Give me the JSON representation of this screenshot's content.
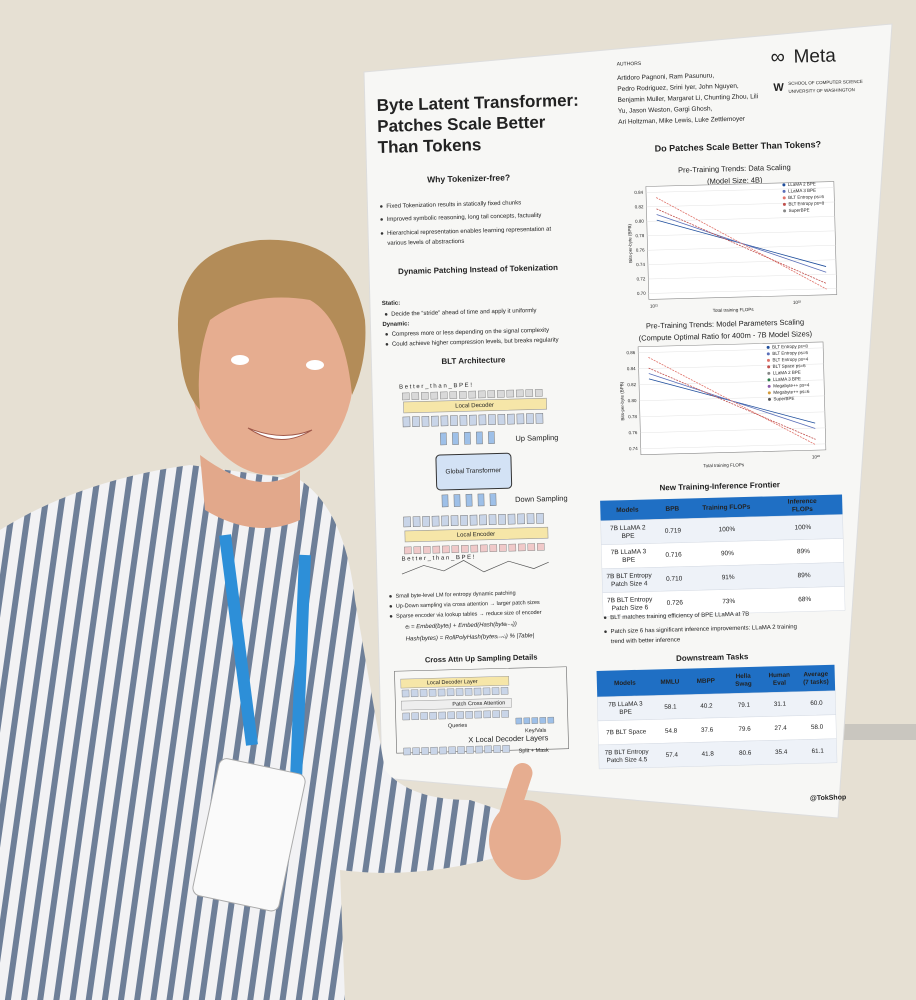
{
  "poster": {
    "title": [
      "Byte Latent Transformer:",
      "Patches Scale Better",
      "Than Tokens"
    ],
    "authors_label": "AUTHORS",
    "authors": [
      "Artidoro Pagnoni, Ram Pasunuru,",
      "Pedro Rodriguez, Srini Iyer, John Nguyen,",
      "Benjamin Muller, Margaret Li, Chunting Zhou, Lili",
      "Yu, Jason Weston, Gargi Ghosh,",
      "Ari Holtzman, Mike Lewis, Luke Zettlemoyer"
    ],
    "logo": "Meta",
    "affiliation": [
      "SCHOOL OF COMPUTER SCIENCE",
      "UNIVERSITY OF WASHINGTON"
    ],
    "why": {
      "heading": "Why Tokenizer-free?",
      "bullets": [
        "Fixed Tokenization results in statically fixed chunks",
        "Improved symbolic reasoning, long tail concepts, factuality",
        "Hierarchical representation enables learning  representation at",
        "various levels of abstractions"
      ]
    },
    "patching": {
      "heading": "Dynamic Patching Instead of Tokenization",
      "static_label": "Static:",
      "static": [
        "Decide the “stride” ahead of time and apply it uniformly"
      ],
      "dynamic_label": "Dynamic:",
      "dynamic": [
        "Compress more or less depending on the signal complexity",
        "Could achieve higher compression levels, but breaks regularity"
      ]
    },
    "architecture": {
      "heading": "BLT Architecture",
      "tokens": "B e t t e r _ t h a n _ B P E !",
      "local_decoder": "Local Decoder",
      "up_sampling": "Up Sampling",
      "global": "Global Transformer",
      "down_sampling": "Down Sampling",
      "local_encoder": "Local Encoder",
      "bullets": [
        "Small byte-level LM for entropy dynamic patching",
        "Up-Down sampling via cross attention → larger patch sizes",
        "Sparse encoder via lookup tables → reduce size of encoder"
      ],
      "formulas": [
        "eᵢ = Embed(byteᵢ) + Embed(Hash(byteᵢ₋ₙ))",
        "Hash(bytes) = RollPolyHash(bytesᵢ₋ₙ:ᵢ) % |Table|"
      ]
    },
    "cross_attn": {
      "heading": "Cross Attn Up Sampling Details",
      "decoder_layer": "Local Decoder Layer",
      "patch_cross": "Patch Cross Attention",
      "queries": "Queries",
      "keyvals": "Key/Vals",
      "layers": "X Local Decoder Layers",
      "split": "Split + Mask"
    },
    "question": "Do Patches Scale Better Than Tokens?",
    "chart1": {
      "title": [
        "Pre-Training Trends: Data Scaling",
        "(Model Size: 4B)"
      ],
      "yticks": [
        "0.84",
        "0.82",
        "0.80",
        "0.78",
        "0.76",
        "0.74",
        "0.72",
        "0.70"
      ],
      "xticks": [
        "10²¹",
        "10²²"
      ],
      "xlabel": "Total training FLOPs",
      "ylabel": "Bits-per-byte (BPB)",
      "legend": [
        "LLaMA 2 BPE",
        "LLaMA 3 BPE",
        "BLT Entropy ps=6",
        "BLT Entropy ps=8",
        "SuperBPE"
      ]
    },
    "chart2": {
      "title": [
        "Pre-Training Trends: Model Parameters Scaling",
        "(Compute Optimal Ratio for 400m - 7B Model Sizes)"
      ],
      "yticks": [
        "0.86",
        "0.84",
        "0.82",
        "0.80",
        "0.78",
        "0.76",
        "0.74"
      ],
      "xticks": [
        "10²²"
      ],
      "xlabel": "Total training FLOPs",
      "ylabel": "Bits-per-byte (BPB)",
      "legend": [
        "BLT Entropy ps=8",
        "BLT Entropy ps=6",
        "BLT Entropy ps=4",
        "BLT Space ps=6",
        "LLaMA 2 BPE",
        "LLaMA 3 BPE",
        "Megabyte++ ps=4",
        "Megabyte++ ps=6",
        "SuperBPE"
      ]
    },
    "frontier": {
      "heading": "New Training-Inference Frontier",
      "header": [
        [
          "Models"
        ],
        [
          "BPB"
        ],
        [
          "Training FLOPs"
        ],
        [
          "Inference",
          "FLOPs"
        ]
      ],
      "rows": [
        [
          [
            "7B LLaMA 2",
            "BPE"
          ],
          "0.719",
          "100%",
          "100%"
        ],
        [
          [
            "7B LLaMA 3",
            "BPE"
          ],
          "0.716",
          "90%",
          "89%"
        ],
        [
          [
            "7B BLT Entropy",
            "Patch Size 4"
          ],
          "0.710",
          "91%",
          "89%"
        ],
        [
          [
            "7B BLT Entropy",
            "Patch Size 6"
          ],
          "0.726",
          "73%",
          "68%"
        ]
      ],
      "bullets": [
        "BLT matches training efficiency of BPE LLaMA at 7B",
        "Patch size 6 has significant inference improvements: LLaMA 2 training",
        "trend with better inference"
      ]
    },
    "downstream": {
      "heading": "Downstream Tasks",
      "header": [
        [
          "Models"
        ],
        [
          "MMLU"
        ],
        [
          "MBPP"
        ],
        [
          "Hella",
          "Swag"
        ],
        [
          "Human",
          "Eval"
        ],
        [
          "Average",
          "(7 tasks)"
        ]
      ],
      "rows": [
        [
          [
            "7B LLaMA 3",
            "BPE"
          ],
          "58.1",
          "40.2",
          "79.1",
          "31.1",
          "60.0"
        ],
        [
          [
            "7B BLT Space"
          ],
          "54.8",
          "37.6",
          "79.6",
          "27.4",
          "58.0"
        ],
        [
          [
            "7B BLT Entropy",
            "Patch Size 4.5"
          ],
          "57.4",
          "41.8",
          "80.6",
          "35.4",
          "61.1"
        ]
      ]
    },
    "handle": "@TokShop"
  }
}
